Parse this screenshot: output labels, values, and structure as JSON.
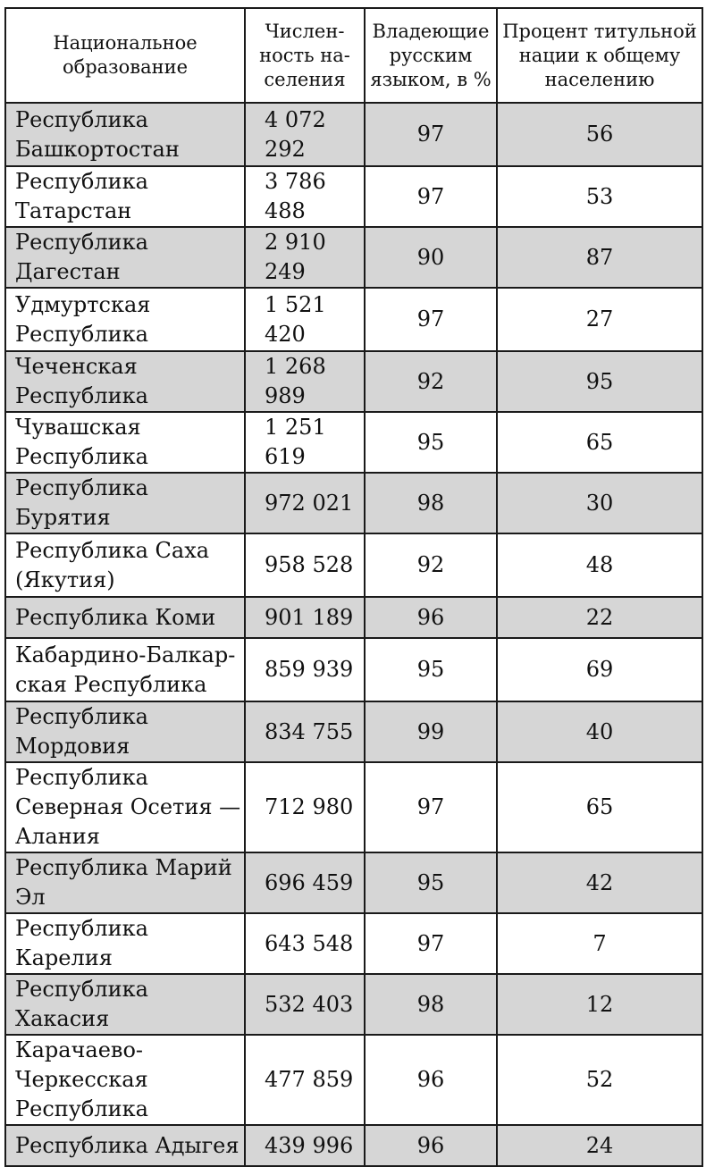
{
  "table": {
    "headers": [
      "Национальное образование",
      "Числен-ность на-селения",
      "Владеющие русским языком, в %",
      "Процент титульной нации к общему населению"
    ],
    "rows": [
      {
        "name": "Республика Башкортостан",
        "population": "4 072 292",
        "russian": "97",
        "titular": "56"
      },
      {
        "name": "Республика Татарстан",
        "population": "3 786 488",
        "russian": "97",
        "titular": "53"
      },
      {
        "name": "Республика Дагестан",
        "population": "2 910 249",
        "russian": "90",
        "titular": "87"
      },
      {
        "name": "Удмуртская Республика",
        "population": "1 521 420",
        "russian": "97",
        "titular": "27"
      },
      {
        "name": "Чеченская Республика",
        "population": "1 268 989",
        "russian": "92",
        "titular": "95"
      },
      {
        "name": "Чувашская Республика",
        "population": "1 251 619",
        "russian": "95",
        "titular": "65"
      },
      {
        "name": "Республика Бурятия",
        "population": "972 021",
        "russian": "98",
        "titular": "30"
      },
      {
        "name": "Республика Саха (Якутия)",
        "population": "958 528",
        "russian": "92",
        "titular": "48"
      },
      {
        "name": "Республика Коми",
        "population": "901 189",
        "russian": "96",
        "titular": "22"
      },
      {
        "name": "Кабардино-Балкар-ская Республика",
        "population": "859 939",
        "russian": "95",
        "titular": "69"
      },
      {
        "name": "Республика Мордовия",
        "population": "834 755",
        "russian": "99",
        "titular": "40"
      },
      {
        "name": "Республика Северная Осетия — Алания",
        "population": "712 980",
        "russian": "97",
        "titular": "65"
      },
      {
        "name": "Республика Марий Эл",
        "population": "696 459",
        "russian": "95",
        "titular": "42"
      },
      {
        "name": "Республика Карелия",
        "population": "643 548",
        "russian": "97",
        "titular": "7"
      },
      {
        "name": "Республика Хакасия",
        "population": "532 403",
        "russian": "98",
        "titular": "12"
      },
      {
        "name": "Карачаево-Черкесская Республика",
        "population": "477 859",
        "russian": "96",
        "titular": "52"
      },
      {
        "name": "Республика Адыгея",
        "population": "439 996",
        "russian": "96",
        "titular": "24"
      }
    ]
  },
  "colors": {
    "shaded_row": "#d6d6d6",
    "border": "#1a1a1a",
    "text": "#111111"
  }
}
